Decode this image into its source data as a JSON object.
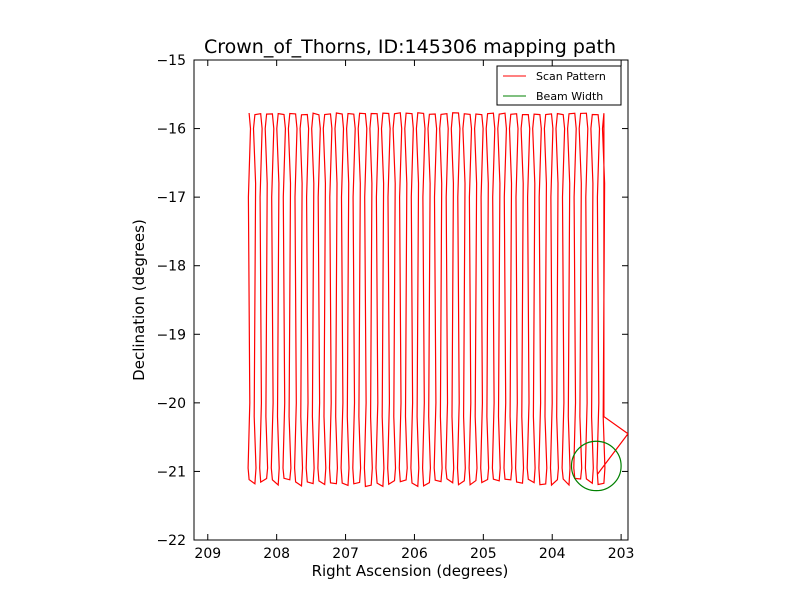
{
  "chart_data": {
    "type": "line",
    "title": "Crown_of_Thorns, ID:145306 mapping path",
    "xlabel": "Right Ascension (degrees)",
    "ylabel": "Declination (degrees)",
    "xlim": [
      209.2,
      202.9
    ],
    "ylim": [
      -22,
      -15
    ],
    "x_ticks": [
      209,
      208,
      207,
      206,
      205,
      204,
      203
    ],
    "y_ticks": [
      -15,
      -16,
      -17,
      -18,
      -19,
      -20,
      -21,
      -22
    ],
    "x_tick_labels": [
      "209",
      "208",
      "207",
      "206",
      "205",
      "204",
      "203"
    ],
    "y_tick_labels": [
      "−15",
      "−16",
      "−17",
      "−18",
      "−19",
      "−20",
      "−21",
      "−22"
    ],
    "grid": false,
    "legend_position": "top-right",
    "legend": [
      "Scan Pattern",
      "Beam Width"
    ],
    "scan_pattern": {
      "color": "#ff0000",
      "ra_start": 208.4,
      "ra_end": 203.25,
      "legs": 62,
      "dec_top": -15.8,
      "dec_bottom": -21.1,
      "exit_path": [
        [
          203.25,
          -20.2
        ],
        [
          202.9,
          -20.45
        ],
        [
          203.35,
          -21.05
        ]
      ]
    },
    "beam_width": {
      "color": "#008000",
      "center": [
        203.36,
        -20.92
      ],
      "radius_deg": 0.36
    }
  }
}
